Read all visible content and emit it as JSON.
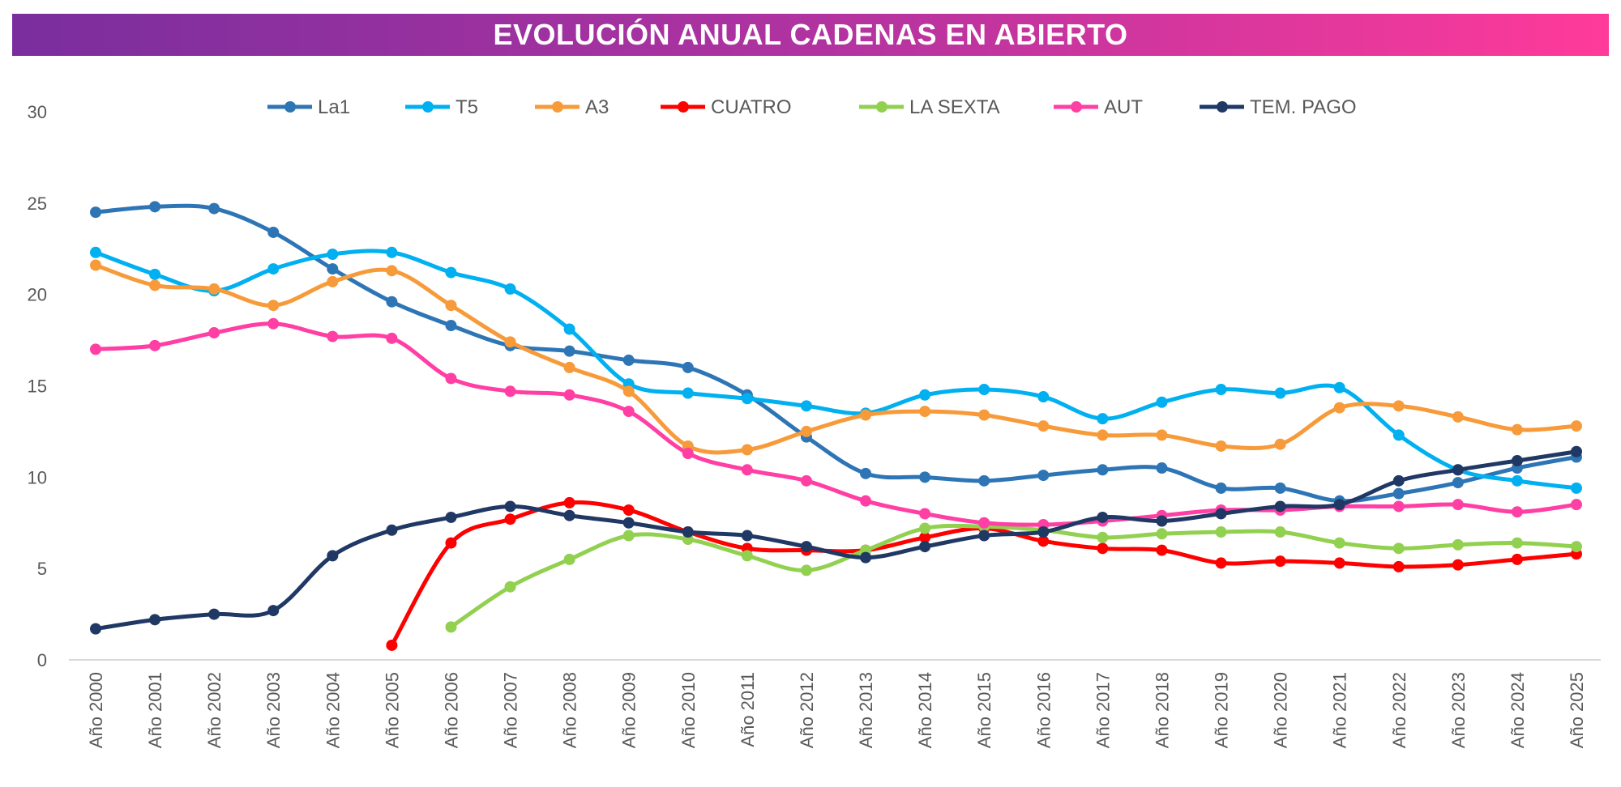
{
  "chart_data": {
    "type": "line",
    "title": "EVOLUCIÓN ANUAL CADENAS EN ABIERTO",
    "xlabel": "",
    "ylabel": "",
    "ylim": [
      0,
      30
    ],
    "yticks": [
      "0",
      "5",
      "10",
      "15",
      "20",
      "25",
      "30"
    ],
    "grid": false,
    "legend": "top",
    "categories": [
      "Año 2000",
      "Año 2001",
      "Año 2002",
      "Año 2003",
      "Año 2004",
      "Año 2005",
      "Año 2006",
      "Año 2007",
      "Año 2008",
      "Año 2009",
      "Año 2010",
      "Año 2011",
      "Año 2012",
      "Año 2013",
      "Año 2014",
      "Año 2015",
      "Año 2016",
      "Año 2017",
      "Año 2018",
      "Año 2019",
      "Año 2020",
      "Año 2021",
      "Año 2022",
      "Año 2023",
      "Año 2024",
      "Año 2025"
    ],
    "series": [
      {
        "name": "La1",
        "color": "#2e75b6",
        "values": [
          24.5,
          24.8,
          24.7,
          23.4,
          21.4,
          19.6,
          18.3,
          17.2,
          16.9,
          16.4,
          16.0,
          14.5,
          12.2,
          10.2,
          10.0,
          9.8,
          10.1,
          10.4,
          10.5,
          9.4,
          9.4,
          8.7,
          9.1,
          9.7,
          10.5,
          11.1
        ]
      },
      {
        "name": "T5",
        "color": "#00b0f0",
        "values": [
          22.3,
          21.1,
          20.2,
          21.4,
          22.2,
          22.3,
          21.2,
          20.3,
          18.1,
          15.1,
          14.6,
          14.3,
          13.9,
          13.5,
          14.5,
          14.8,
          14.4,
          13.2,
          14.1,
          14.8,
          14.6,
          14.9,
          12.3,
          10.4,
          9.8,
          9.4
        ]
      },
      {
        "name": "A3",
        "color": "#f79a3a",
        "values": [
          21.6,
          20.5,
          20.3,
          19.4,
          20.7,
          21.3,
          19.4,
          17.4,
          16.0,
          14.7,
          11.7,
          11.5,
          12.5,
          13.4,
          13.6,
          13.4,
          12.8,
          12.3,
          12.3,
          11.7,
          11.8,
          13.8,
          13.9,
          13.3,
          12.6,
          12.8
        ]
      },
      {
        "name": "CUATRO",
        "color": "#ff0000",
        "values": [
          null,
          null,
          null,
          null,
          null,
          0.8,
          6.4,
          7.7,
          8.6,
          8.2,
          7.0,
          6.1,
          6.0,
          6.0,
          6.7,
          7.2,
          6.5,
          6.1,
          6.0,
          5.3,
          5.4,
          5.3,
          5.1,
          5.2,
          5.5,
          5.8
        ]
      },
      {
        "name": "LA SEXTA",
        "color": "#92d050",
        "values": [
          null,
          null,
          null,
          null,
          null,
          null,
          1.8,
          4.0,
          5.5,
          6.8,
          6.6,
          5.7,
          4.9,
          6.0,
          7.2,
          7.3,
          7.1,
          6.7,
          6.9,
          7.0,
          7.0,
          6.4,
          6.1,
          6.3,
          6.4,
          6.2
        ]
      },
      {
        "name": "AUT",
        "color": "#ff3fa4",
        "values": [
          17.0,
          17.2,
          17.9,
          18.4,
          17.7,
          17.6,
          15.4,
          14.7,
          14.5,
          13.6,
          11.3,
          10.4,
          9.8,
          8.7,
          8.0,
          7.5,
          7.4,
          7.6,
          7.9,
          8.2,
          8.2,
          8.4,
          8.4,
          8.5,
          8.1,
          8.5
        ]
      },
      {
        "name": "TEM. PAGO",
        "color": "#203864",
        "values": [
          1.7,
          2.2,
          2.5,
          2.7,
          5.7,
          7.1,
          7.8,
          8.4,
          7.9,
          7.5,
          7.0,
          6.8,
          6.2,
          5.6,
          6.2,
          6.8,
          7.0,
          7.8,
          7.6,
          8.0,
          8.4,
          8.5,
          9.8,
          10.4,
          10.9,
          11.4
        ]
      }
    ]
  }
}
